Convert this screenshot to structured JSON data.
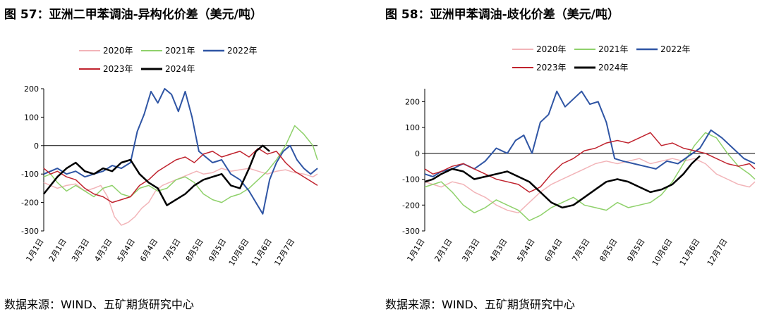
{
  "chart_data": [
    {
      "type": "line",
      "title": "图 57：亚洲二甲苯调油-异构化价差（美元/吨）",
      "source": "数据来源：WIND、五矿期货研究中心",
      "ylim": [
        -300,
        200
      ],
      "yticks": [
        "200",
        "100",
        "0",
        "-100",
        "-200",
        "-300"
      ],
      "ytick_values": [
        200,
        100,
        0,
        -100,
        -200,
        -300
      ],
      "xticks": [
        "1月1日",
        "2月1日",
        "3月3日",
        "4月3日",
        "5月4日",
        "6月4日",
        "7月5日",
        "8月5日",
        "9月5日",
        "10月6日",
        "11月6日",
        "12月7日"
      ],
      "x_domain": [
        0,
        12
      ],
      "series": [
        {
          "name": "2020年",
          "color": "#f2b4b8",
          "width": 1.5,
          "x": [
            0,
            0.3,
            0.6,
            1,
            1.4,
            1.8,
            2.2,
            2.5,
            2.8,
            3.1,
            3.4,
            3.7,
            4,
            4.3,
            4.6,
            4.9,
            5.2,
            5.5,
            5.8,
            6.1,
            6.4,
            6.7,
            7,
            7.4,
            7.8,
            8.2,
            8.6,
            9,
            9.4,
            9.8,
            10.2,
            10.6,
            11,
            11.4,
            11.8,
            12
          ],
          "y": [
            -130,
            -140,
            -150,
            -140,
            -135,
            -160,
            -150,
            -140,
            -180,
            -250,
            -280,
            -270,
            -250,
            -220,
            -200,
            -160,
            -140,
            -130,
            -120,
            -110,
            -100,
            -90,
            -100,
            -95,
            -80,
            -90,
            -85,
            -80,
            -90,
            -100,
            -90,
            -85,
            -95,
            -100,
            -110,
            -100
          ]
        },
        {
          "name": "2021年",
          "color": "#8fd16b",
          "width": 1.5,
          "x": [
            0,
            0.3,
            0.6,
            1,
            1.4,
            1.8,
            2.2,
            2.6,
            3,
            3.4,
            3.8,
            4.2,
            4.6,
            5,
            5.4,
            5.8,
            6.2,
            6.6,
            7,
            7.4,
            7.8,
            8.2,
            8.6,
            9,
            9.4,
            9.8,
            10.2,
            10.6,
            11,
            11.4,
            11.8,
            12
          ],
          "y": [
            -110,
            -100,
            -130,
            -160,
            -140,
            -160,
            -180,
            -150,
            -140,
            -170,
            -180,
            -150,
            -140,
            -160,
            -150,
            -120,
            -110,
            -130,
            -170,
            -190,
            -200,
            -180,
            -170,
            -150,
            -120,
            -90,
            -50,
            0,
            70,
            40,
            0,
            -50
          ]
        },
        {
          "name": "2022年",
          "color": "#2f55a4",
          "width": 2,
          "x": [
            0,
            0.3,
            0.6,
            1,
            1.4,
            1.8,
            2.2,
            2.6,
            3,
            3.4,
            3.8,
            4.1,
            4.4,
            4.7,
            5,
            5.3,
            5.6,
            5.9,
            6.2,
            6.5,
            6.8,
            7.1,
            7.4,
            7.8,
            8.2,
            8.6,
            9,
            9.3,
            9.6,
            9.9,
            10.2,
            10.5,
            10.8,
            11.1,
            11.4,
            11.7,
            12
          ],
          "y": [
            -100,
            -90,
            -80,
            -100,
            -90,
            -110,
            -100,
            -90,
            -70,
            -80,
            -60,
            50,
            110,
            190,
            150,
            200,
            180,
            120,
            190,
            100,
            -20,
            -40,
            -60,
            -50,
            -100,
            -120,
            -160,
            -200,
            -240,
            -120,
            -60,
            -20,
            0,
            -50,
            -80,
            -100,
            -80
          ]
        },
        {
          "name": "2023年",
          "color": "#c0232e",
          "width": 1.5,
          "x": [
            0,
            0.3,
            0.6,
            1,
            1.4,
            1.8,
            2.2,
            2.6,
            3,
            3.4,
            3.8,
            4.2,
            4.6,
            5,
            5.4,
            5.8,
            6.2,
            6.6,
            7,
            7.4,
            7.8,
            8.2,
            8.6,
            9,
            9.4,
            9.8,
            10.2,
            10.6,
            11,
            11.4,
            11.8,
            12
          ],
          "y": [
            -80,
            -100,
            -90,
            -110,
            -120,
            -150,
            -170,
            -180,
            -200,
            -190,
            -180,
            -140,
            -120,
            -90,
            -70,
            -50,
            -40,
            -60,
            -30,
            -20,
            -40,
            -30,
            -20,
            -40,
            -10,
            -30,
            -20,
            -60,
            -90,
            -110,
            -130,
            -140
          ]
        },
        {
          "name": "2024年",
          "color": "#000000",
          "width": 2.5,
          "x": [
            0,
            0.3,
            0.6,
            1,
            1.4,
            1.8,
            2.2,
            2.6,
            3,
            3.4,
            3.8,
            4.2,
            4.6,
            5,
            5.4,
            5.8,
            6.2,
            6.6,
            7,
            7.4,
            7.8,
            8.2,
            8.6,
            9,
            9.3,
            9.6,
            9.9
          ],
          "y": [
            -170,
            -140,
            -110,
            -80,
            -60,
            -90,
            -100,
            -80,
            -90,
            -60,
            -50,
            -100,
            -130,
            -150,
            -210,
            -190,
            -170,
            -140,
            -120,
            -110,
            -100,
            -140,
            -150,
            -80,
            -20,
            0,
            -20
          ]
        }
      ]
    },
    {
      "type": "line",
      "title": "图 58：亚洲甲苯调油-歧化价差（美元/吨）",
      "source": "数据来源：WIND、五矿期货研究中心",
      "ylim": [
        -300,
        250
      ],
      "yticks": [
        "200",
        "100",
        "0",
        "-100",
        "-200",
        "-300"
      ],
      "ytick_values": [
        200,
        100,
        0,
        -100,
        -200,
        -300
      ],
      "xticks": [
        "1月1日",
        "2月1日",
        "3月3日",
        "4月3日",
        "5月4日",
        "6月4日",
        "7月5日",
        "8月5日",
        "9月5日",
        "10月6日",
        "11月6日",
        "12月7日"
      ],
      "x_domain": [
        0,
        12
      ],
      "series": [
        {
          "name": "2020年",
          "color": "#f2b4b8",
          "width": 1.5,
          "x": [
            0,
            0.3,
            0.6,
            1,
            1.4,
            1.8,
            2.2,
            2.6,
            3,
            3.4,
            3.8,
            4.2,
            4.6,
            5,
            5.4,
            5.8,
            6.2,
            6.6,
            7,
            7.4,
            7.8,
            8.2,
            8.6,
            9,
            9.4,
            9.8,
            10.2,
            10.6,
            11,
            11.4,
            11.8,
            12
          ],
          "y": [
            -110,
            -120,
            -130,
            -110,
            -120,
            -150,
            -170,
            -200,
            -220,
            -230,
            -190,
            -150,
            -120,
            -100,
            -80,
            -60,
            -40,
            -30,
            -40,
            -30,
            -20,
            -40,
            -30,
            -20,
            -30,
            -20,
            -40,
            -80,
            -100,
            -120,
            -130,
            -110
          ]
        },
        {
          "name": "2021年",
          "color": "#8fd16b",
          "width": 1.5,
          "x": [
            0,
            0.3,
            0.6,
            1,
            1.4,
            1.8,
            2.2,
            2.6,
            3,
            3.4,
            3.8,
            4.2,
            4.6,
            5,
            5.4,
            5.8,
            6.2,
            6.6,
            7,
            7.4,
            7.8,
            8.2,
            8.6,
            9,
            9.4,
            9.8,
            10.2,
            10.6,
            11,
            11.4,
            11.8,
            12
          ],
          "y": [
            -130,
            -120,
            -110,
            -150,
            -200,
            -230,
            -210,
            -180,
            -200,
            -220,
            -260,
            -240,
            -210,
            -190,
            -170,
            -200,
            -210,
            -220,
            -190,
            -210,
            -200,
            -190,
            -160,
            -110,
            -40,
            30,
            80,
            60,
            0,
            -50,
            -80,
            -100
          ]
        },
        {
          "name": "2022年",
          "color": "#2f55a4",
          "width": 2,
          "x": [
            0,
            0.3,
            0.6,
            1,
            1.4,
            1.8,
            2.2,
            2.6,
            3,
            3.3,
            3.6,
            3.9,
            4.2,
            4.5,
            4.8,
            5.1,
            5.4,
            5.7,
            6,
            6.3,
            6.6,
            6.9,
            7.2,
            7.6,
            8,
            8.4,
            8.8,
            9.2,
            9.6,
            10,
            10.4,
            10.8,
            11.2,
            11.6,
            12
          ],
          "y": [
            -80,
            -90,
            -70,
            -60,
            -40,
            -60,
            -30,
            20,
            0,
            50,
            70,
            0,
            120,
            150,
            240,
            180,
            210,
            240,
            190,
            200,
            120,
            -20,
            -30,
            -40,
            -50,
            -60,
            -30,
            -40,
            -10,
            20,
            90,
            60,
            20,
            -20,
            -40
          ]
        },
        {
          "name": "2023年",
          "color": "#c0232e",
          "width": 1.5,
          "x": [
            0,
            0.3,
            0.6,
            1,
            1.4,
            1.8,
            2.2,
            2.6,
            3,
            3.4,
            3.8,
            4.2,
            4.6,
            5,
            5.4,
            5.8,
            6.2,
            6.6,
            7,
            7.4,
            7.8,
            8.2,
            8.6,
            9,
            9.4,
            9.8,
            10.2,
            10.6,
            11,
            11.4,
            11.8,
            12
          ],
          "y": [
            -60,
            -80,
            -70,
            -50,
            -40,
            -60,
            -80,
            -100,
            -110,
            -120,
            -150,
            -130,
            -80,
            -40,
            -20,
            10,
            20,
            40,
            50,
            40,
            60,
            80,
            30,
            40,
            20,
            10,
            0,
            -20,
            -40,
            -50,
            -40,
            -60
          ]
        },
        {
          "name": "2024年",
          "color": "#000000",
          "width": 2.5,
          "x": [
            0,
            0.3,
            0.6,
            1,
            1.4,
            1.8,
            2.2,
            2.6,
            3,
            3.4,
            3.8,
            4.2,
            4.6,
            5,
            5.4,
            5.8,
            6.2,
            6.6,
            7,
            7.4,
            7.8,
            8.2,
            8.6,
            9,
            9.4,
            9.7,
            10
          ],
          "y": [
            -110,
            -100,
            -80,
            -60,
            -70,
            -100,
            -90,
            -80,
            -70,
            -90,
            -110,
            -150,
            -190,
            -210,
            -200,
            -170,
            -140,
            -110,
            -100,
            -110,
            -130,
            -150,
            -140,
            -120,
            -80,
            -40,
            -10
          ]
        }
      ]
    }
  ]
}
